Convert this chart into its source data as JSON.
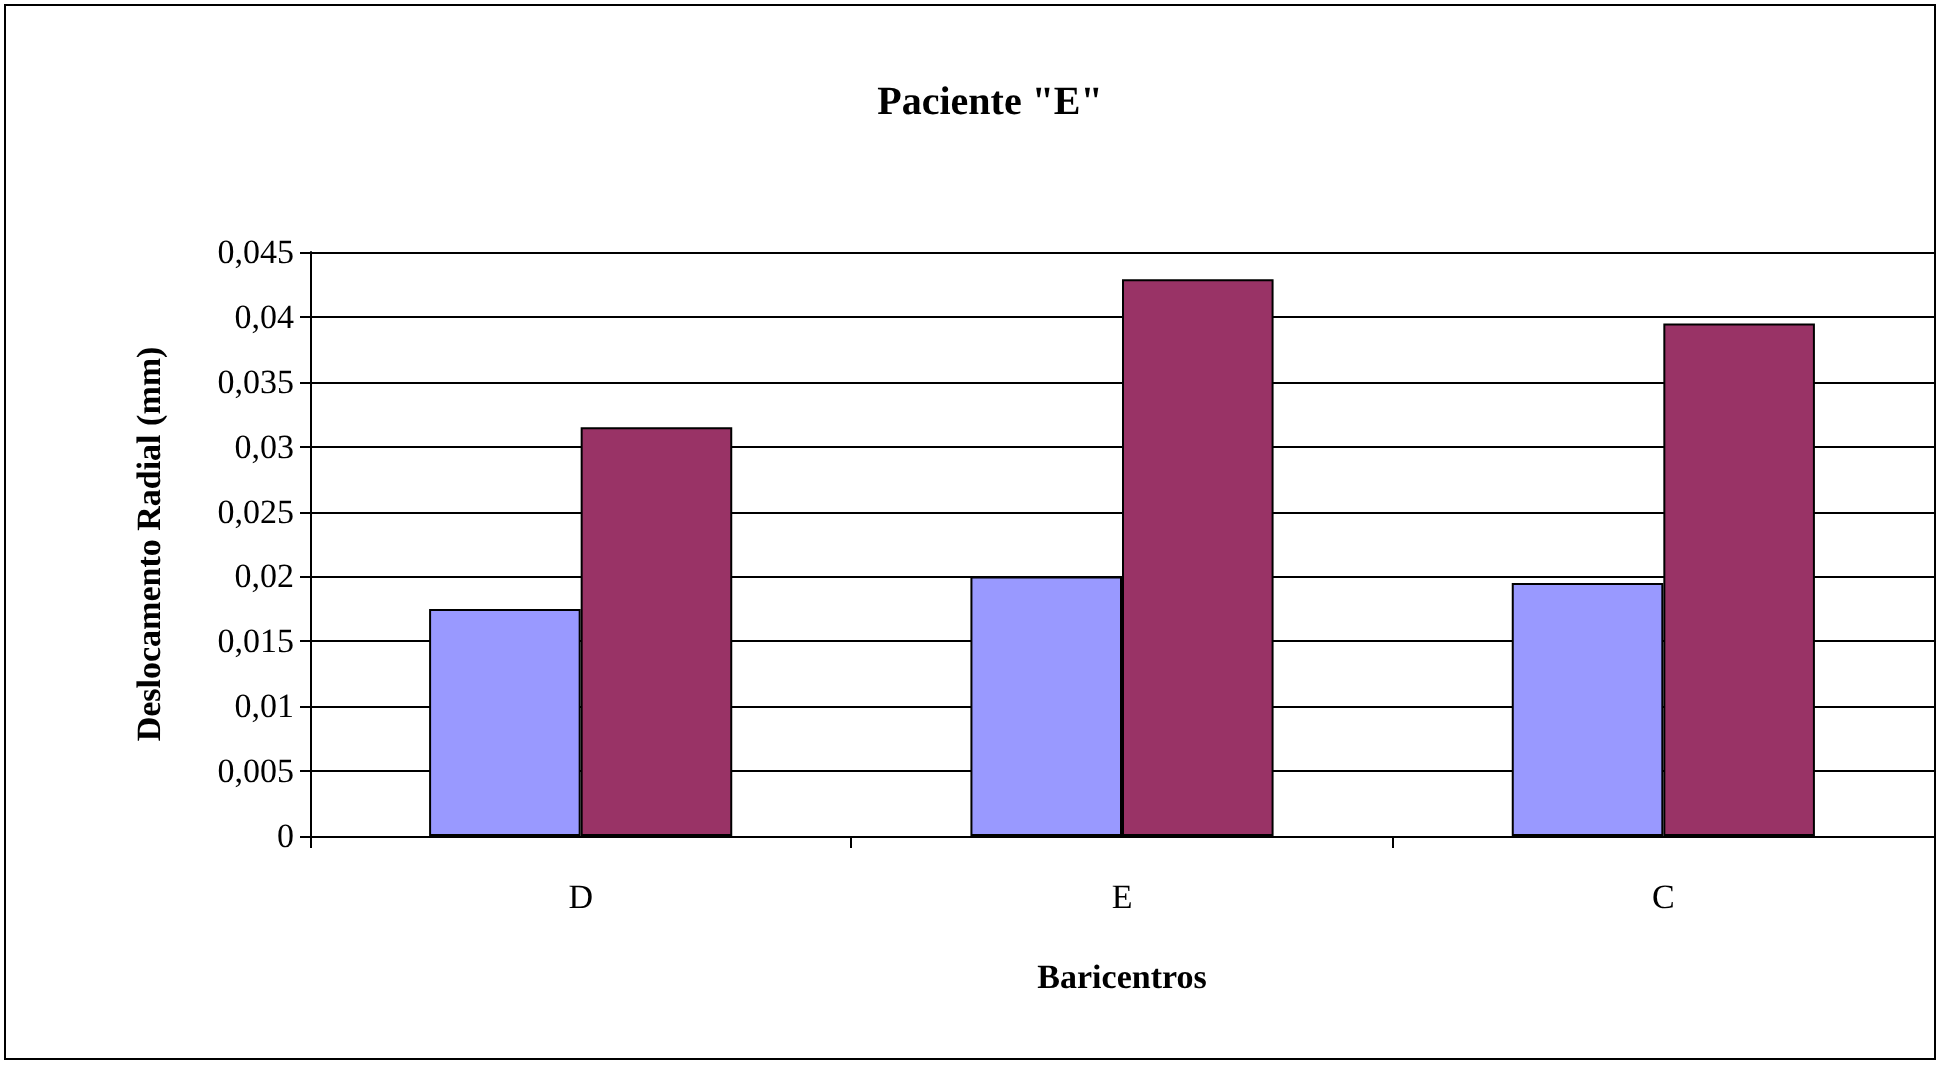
{
  "chart_data": {
    "type": "bar",
    "title": "Paciente \"E\"",
    "xlabel": "Baricentros",
    "ylabel": "Deslocamento Radial (mm)",
    "categories": [
      "D",
      "E",
      "C"
    ],
    "series": [
      {
        "color": "#9999ff",
        "values": [
          0.0175,
          0.02,
          0.0195
        ]
      },
      {
        "color": "#993366",
        "values": [
          0.0315,
          0.0429,
          0.0395
        ]
      }
    ],
    "ylim": [
      0,
      0.045
    ],
    "yticks": [
      {
        "value": 0,
        "label": "0"
      },
      {
        "value": 0.005,
        "label": "0,005"
      },
      {
        "value": 0.01,
        "label": "0,01"
      },
      {
        "value": 0.015,
        "label": "0,015"
      },
      {
        "value": 0.02,
        "label": "0,02"
      },
      {
        "value": 0.025,
        "label": "0,025"
      },
      {
        "value": 0.03,
        "label": "0,03"
      },
      {
        "value": 0.035,
        "label": "0,035"
      },
      {
        "value": 0.04,
        "label": "0,04"
      },
      {
        "value": 0.045,
        "label": "0,045"
      }
    ],
    "grid": "y"
  }
}
